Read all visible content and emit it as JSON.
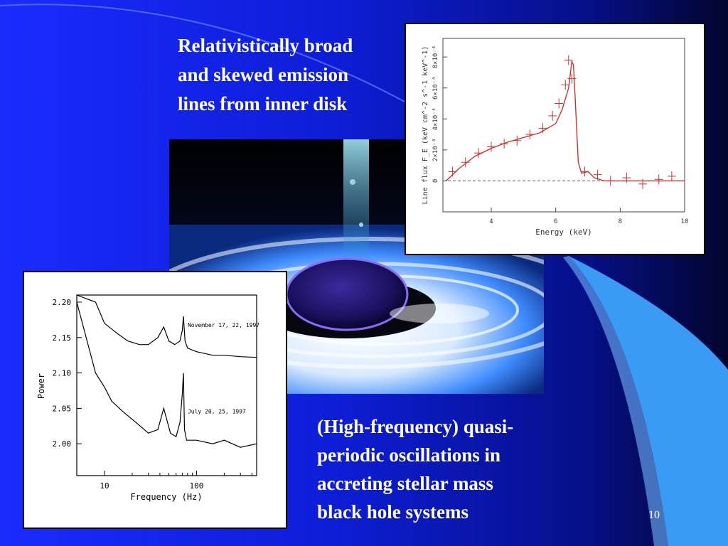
{
  "slide": {
    "caption_top": [
      "Relativistically broad",
      "and skewed emission",
      "lines from inner disk"
    ],
    "caption_bottom": [
      "(High-frequency) quasi-",
      "periodic oscillations in",
      "accreting stellar mass",
      "black hole systems"
    ],
    "slide_number": "10"
  },
  "colors": {
    "background_left": "#1224ff",
    "background_right": "#000033",
    "light_blue_swoosh": "#3a9bf5",
    "spectrum_line": "#cc3333"
  },
  "chart_data": [
    {
      "type": "line",
      "xlabel": "Energy (keV)",
      "ylabel": "Line flux F_E (keV cm^-2 s^-1 keV^-1)",
      "xlim": [
        2.5,
        10
      ],
      "ylim": [
        -0.0002,
        0.00092
      ],
      "x_ticks": [
        "4",
        "6",
        "8",
        "10"
      ],
      "y_ticks": [
        "0",
        "2×10⁻⁴",
        "4×10⁻⁴",
        "6×10⁻⁴",
        "8×10⁻⁴"
      ],
      "series": [
        {
          "style": "model-line",
          "x": [
            2.6,
            3.0,
            3.5,
            4.0,
            4.5,
            5.0,
            5.5,
            6.0,
            6.2,
            6.4,
            6.5,
            6.55,
            6.6,
            6.7,
            6.8,
            7.0,
            7.2,
            7.5,
            8.0,
            9.0,
            10.0
          ],
          "y": [
            0.0,
            8e-05,
            0.00016,
            0.00021,
            0.00025,
            0.00028,
            0.00031,
            0.00037,
            0.00046,
            0.0006,
            0.00077,
            0.00075,
            0.00055,
            0.00012,
            5e-05,
            6e-05,
            2e-05,
            0.0,
            0.0,
            0.0,
            0.0
          ]
        },
        {
          "style": "data-points",
          "x": [
            2.8,
            3.2,
            3.6,
            4.0,
            4.4,
            4.8,
            5.2,
            5.6,
            5.9,
            6.1,
            6.3,
            6.4,
            6.5,
            6.9,
            7.3,
            7.7,
            8.2,
            8.7,
            9.2,
            9.6
          ],
          "y": [
            6e-05,
            0.00012,
            0.00018,
            0.00022,
            0.00024,
            0.00026,
            0.0003,
            0.00034,
            0.00042,
            0.0005,
            0.00062,
            0.00078,
            0.00066,
            6e-05,
            4e-05,
            0.0,
            2e-05,
            -2e-05,
            1e-05,
            3e-05
          ]
        },
        {
          "style": "dashed-baseline",
          "x": [
            2.5,
            10
          ],
          "y": [
            0,
            0
          ]
        }
      ]
    },
    {
      "type": "line",
      "xlabel": "Frequency (Hz)",
      "ylabel": "Power",
      "x_scale": "log",
      "xlim": [
        5,
        450
      ],
      "ylim": [
        1.955,
        2.21
      ],
      "x_ticks": [
        "10",
        "100"
      ],
      "y_ticks": [
        "2.00",
        "2.05",
        "2.10",
        "2.15",
        "2.20"
      ],
      "series": [
        {
          "name": "November 17, 22, 1997",
          "x": [
            5,
            8,
            10,
            14,
            18,
            24,
            30,
            38,
            44,
            50,
            58,
            66,
            70,
            72,
            75,
            80,
            100,
            150,
            200,
            300,
            450
          ],
          "y": [
            2.21,
            2.2,
            2.17,
            2.155,
            2.145,
            2.14,
            2.14,
            2.15,
            2.165,
            2.145,
            2.14,
            2.145,
            2.16,
            2.18,
            2.145,
            2.135,
            2.13,
            2.125,
            2.125,
            2.123,
            2.122
          ]
        },
        {
          "name": "July 20, 25, 1997",
          "x": [
            5,
            8,
            10,
            12,
            16,
            22,
            30,
            38,
            44,
            52,
            60,
            66,
            70,
            72,
            74,
            78,
            100,
            150,
            200,
            300,
            450
          ],
          "y": [
            2.2,
            2.1,
            2.08,
            2.06,
            2.045,
            2.03,
            2.015,
            2.02,
            2.05,
            2.015,
            2.01,
            2.03,
            2.07,
            2.1,
            2.02,
            2.005,
            2.005,
            2.0,
            2.005,
            1.995,
            2.0
          ]
        }
      ]
    }
  ]
}
